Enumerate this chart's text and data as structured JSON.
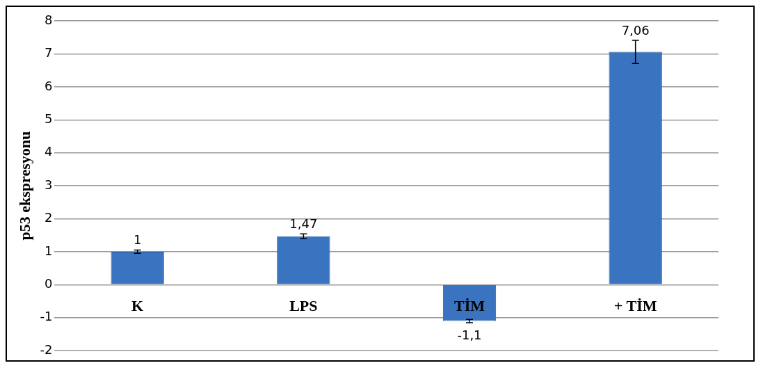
{
  "chart_data": {
    "type": "bar",
    "ylabel": "p53 ekspresyonu",
    "categories": [
      "K",
      "LPS",
      "TİM",
      "+ TİM"
    ],
    "values": [
      1,
      1.47,
      -1.1,
      7.06
    ],
    "errors": [
      0.05,
      0.07,
      0.05,
      0.35
    ],
    "value_labels": [
      "1",
      "1,47",
      "-1,1",
      "7,06"
    ],
    "color": "#3a74c0",
    "ylim": [
      -2,
      8
    ],
    "yticks": [
      -2,
      -1,
      0,
      1,
      2,
      3,
      4,
      5,
      6,
      7,
      8
    ],
    "grid": "y",
    "legend": false
  }
}
